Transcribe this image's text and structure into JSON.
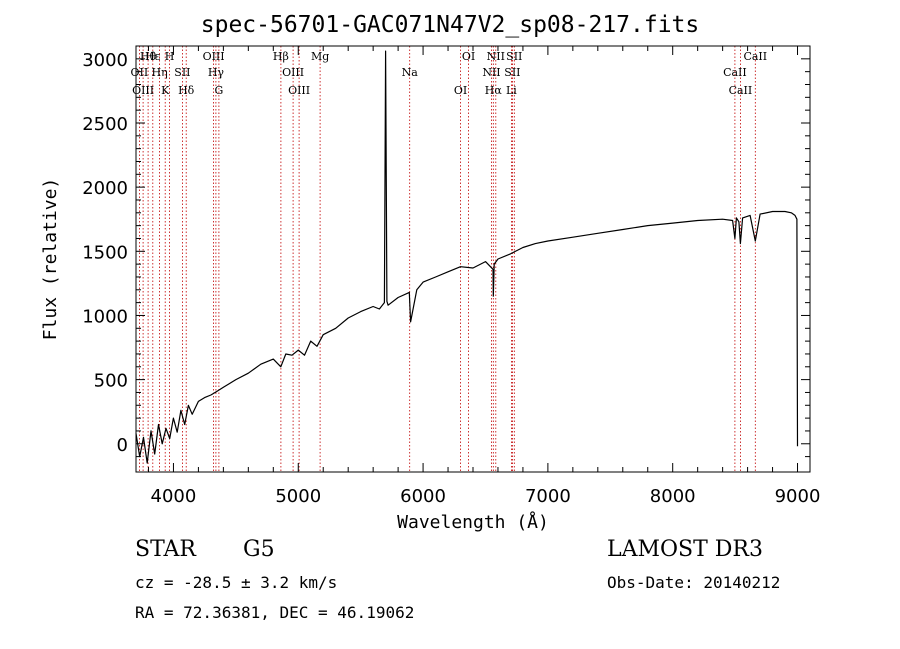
{
  "chart_data": {
    "type": "line",
    "title": "spec-56701-GAC071N47V2_sp08-217.fits",
    "xlabel": "Wavelength (Å)",
    "ylabel": "Flux (relative)",
    "xlim": [
      3700,
      9100
    ],
    "ylim": [
      -220,
      3100
    ],
    "xticks": [
      4000,
      5000,
      6000,
      7000,
      8000,
      9000
    ],
    "yticks": [
      0,
      500,
      1000,
      1500,
      2000,
      2500,
      3000
    ],
    "series": [
      {
        "name": "flux",
        "x": [
          3700,
          3730,
          3760,
          3790,
          3820,
          3850,
          3880,
          3910,
          3940,
          3970,
          4000,
          4030,
          4060,
          4090,
          4120,
          4150,
          4200,
          4250,
          4300,
          4350,
          4400,
          4450,
          4500,
          4600,
          4700,
          4800,
          4860,
          4900,
          4950,
          5000,
          5050,
          5100,
          5150,
          5200,
          5300,
          5400,
          5500,
          5600,
          5650,
          5690,
          5700,
          5710,
          5720,
          5800,
          5890,
          5900,
          5950,
          6000,
          6100,
          6200,
          6300,
          6400,
          6500,
          6560,
          6563,
          6570,
          6600,
          6700,
          6800,
          6900,
          7000,
          7200,
          7400,
          7600,
          7800,
          8000,
          8200,
          8400,
          8480,
          8498,
          8510,
          8530,
          8542,
          8560,
          8620,
          8662,
          8700,
          8800,
          8900,
          8950,
          8980,
          8995,
          9000
        ],
        "y": [
          80,
          -100,
          50,
          -150,
          100,
          -80,
          150,
          0,
          120,
          40,
          200,
          90,
          260,
          150,
          300,
          230,
          330,
          360,
          380,
          410,
          440,
          470,
          500,
          550,
          620,
          660,
          600,
          700,
          690,
          730,
          690,
          800,
          760,
          850,
          900,
          980,
          1030,
          1070,
          1050,
          1100,
          3060,
          1110,
          1080,
          1140,
          1180,
          950,
          1200,
          1260,
          1300,
          1340,
          1380,
          1370,
          1420,
          1360,
          1150,
          1400,
          1440,
          1480,
          1530,
          1560,
          1580,
          1610,
          1640,
          1670,
          1700,
          1720,
          1740,
          1750,
          1740,
          1600,
          1760,
          1730,
          1560,
          1760,
          1780,
          1580,
          1790,
          1810,
          1810,
          1800,
          1780,
          1750,
          -20
        ]
      }
    ],
    "line_marks": [
      {
        "label": "Hθ",
        "lambda": 3797
      },
      {
        "label": "OII",
        "lambda": 3727
      },
      {
        "label": "OIII",
        "lambda": 3757
      },
      {
        "label": "Hε",
        "lambda": 3835
      },
      {
        "label": "Hη",
        "lambda": 3889
      },
      {
        "label": "K",
        "lambda": 3934
      },
      {
        "label": "H",
        "lambda": 3969
      },
      {
        "label": "SII",
        "lambda": 4072
      },
      {
        "label": "Hδ",
        "lambda": 4102
      },
      {
        "label": "OIII",
        "lambda": 4322
      },
      {
        "label": "Hγ",
        "lambda": 4340
      },
      {
        "label": "G",
        "lambda": 4364
      },
      {
        "label": "Hβ",
        "lambda": 4861
      },
      {
        "label": "OIII",
        "lambda": 4959
      },
      {
        "label": "OIII",
        "lambda": 5007
      },
      {
        "label": "Mg",
        "lambda": 5175
      },
      {
        "label": "Na",
        "lambda": 5893
      },
      {
        "label": "OI",
        "lambda": 6300
      },
      {
        "label": "OI",
        "lambda": 6364
      },
      {
        "label": "NII",
        "lambda": 6548
      },
      {
        "label": "Hα",
        "lambda": 6563
      },
      {
        "label": "NII",
        "lambda": 6583
      },
      {
        "label": "SII",
        "lambda": 6716
      },
      {
        "label": "Li",
        "lambda": 6708
      },
      {
        "label": "SII",
        "lambda": 6731
      },
      {
        "label": "CaII",
        "lambda": 8498
      },
      {
        "label": "CaII",
        "lambda": 8542
      },
      {
        "label": "CaII",
        "lambda": 8662
      }
    ]
  },
  "info": {
    "class_type": "STAR",
    "subclass": "G5",
    "survey": "LAMOST DR3",
    "redshift": "cz = -28.5 ± 3.2 km/s",
    "obs_date": "Obs-Date: 20140212",
    "coords": "RA =  72.36381, DEC =  46.19062"
  },
  "colors": {
    "line": "#000000",
    "marker": "#c00000"
  }
}
